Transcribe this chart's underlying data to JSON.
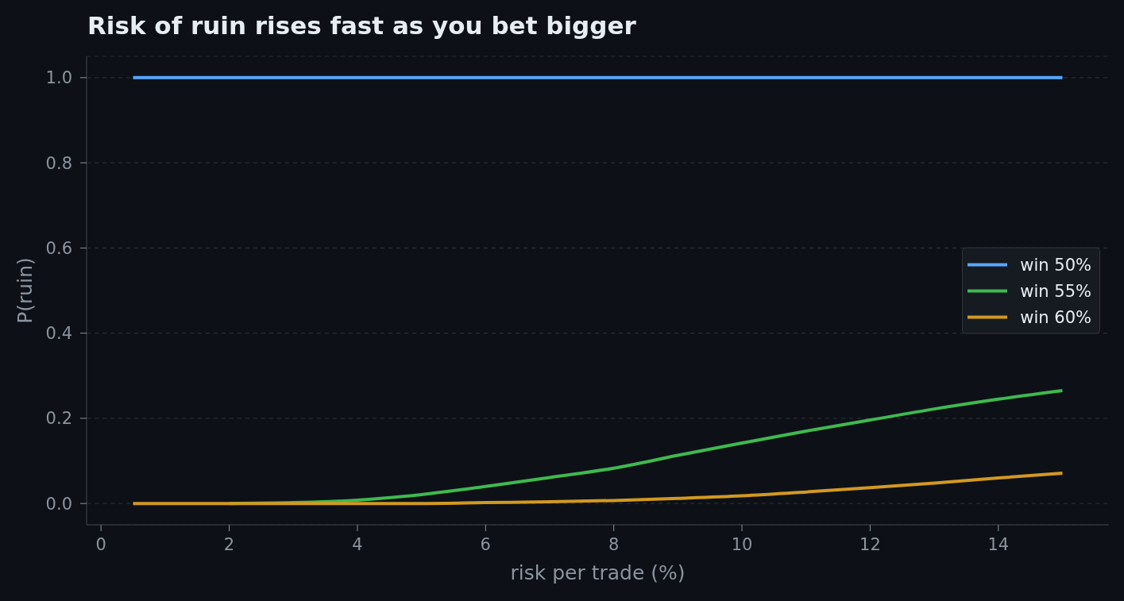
{
  "chart_data": {
    "type": "line",
    "title": "Risk of ruin rises fast as you bet bigger",
    "xlabel": "risk per trade (%)",
    "ylabel": "P(ruin)",
    "x": [
      0.5,
      1,
      2,
      3,
      4,
      5,
      6,
      7,
      8,
      9,
      10,
      11,
      12,
      13,
      14,
      15
    ],
    "series": [
      {
        "name": "win 50%",
        "color": "#58a6ff",
        "values": [
          1,
          1,
          1,
          1,
          1,
          1,
          1,
          1,
          1,
          1,
          1,
          1,
          1,
          1,
          1,
          1
        ]
      },
      {
        "name": "win 55%",
        "color": "#3fb950",
        "values": [
          null,
          null,
          0,
          0.002,
          0.008,
          0.021,
          0.04,
          0.061,
          0.083,
          0.113,
          0.142,
          0.17,
          0.196,
          0.222,
          0.245,
          0.265
        ]
      },
      {
        "name": "win 60%",
        "color": "#d29922",
        "values": [
          0,
          0,
          0,
          0,
          0,
          0,
          0.002,
          0.004,
          0.007,
          0.012,
          0.018,
          0.027,
          0.037,
          0.048,
          0.06,
          0.071
        ]
      }
    ],
    "xlim": [
      -0.225,
      15.725
    ],
    "xticks": [
      0,
      2,
      4,
      6,
      8,
      10,
      12,
      14
    ],
    "ylim": [
      -0.05,
      1.05
    ],
    "yticks": [
      {
        "value": 0,
        "label": "0.0"
      },
      0.2,
      0.4,
      0.6,
      0.8,
      {
        "value": 1,
        "label": "1.0"
      }
    ],
    "grid": "y",
    "legend": "right"
  }
}
